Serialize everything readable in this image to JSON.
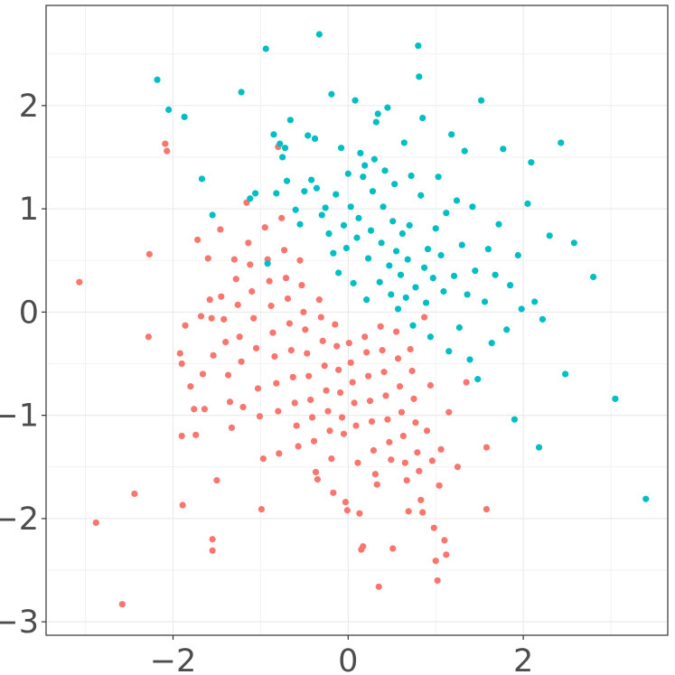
{
  "chart_data": {
    "type": "scatter",
    "title": "",
    "xlabel": "",
    "ylabel": "",
    "xlim": [
      -3.45,
      3.65
    ],
    "ylim": [
      -3.13,
      2.97
    ],
    "grid": true,
    "legend": "none",
    "x_ticks": [
      -2,
      0,
      2
    ],
    "x_tick_labels": [
      "−2",
      "0",
      "2"
    ],
    "y_ticks": [
      -3,
      -2,
      -1,
      0,
      1,
      2
    ],
    "y_tick_labels": [
      "−3",
      "−2",
      "−1",
      "0",
      "1",
      "2"
    ],
    "series": [
      {
        "color": "#F8766D",
        "points": [
          [
            -3.07,
            0.29
          ],
          [
            -2.88,
            -2.04
          ],
          [
            -2.58,
            -2.83
          ],
          [
            -2.44,
            -1.76
          ],
          [
            -2.27,
            0.56
          ],
          [
            -2.28,
            -0.24
          ],
          [
            -2.09,
            1.63
          ],
          [
            -2.07,
            1.56
          ],
          [
            -1.92,
            -0.4
          ],
          [
            -1.9,
            -0.5
          ],
          [
            -1.9,
            -1.2
          ],
          [
            -1.89,
            -1.87
          ],
          [
            -1.86,
            -0.13
          ],
          [
            -1.8,
            -0.72
          ],
          [
            -1.76,
            -0.94
          ],
          [
            -1.74,
            -1.19
          ],
          [
            -1.72,
            0.7
          ],
          [
            -1.68,
            -0.04
          ],
          [
            -1.66,
            -0.6
          ],
          [
            -1.64,
            -0.94
          ],
          [
            -1.6,
            0.52
          ],
          [
            -1.58,
            0.12
          ],
          [
            -1.56,
            -0.06
          ],
          [
            -1.54,
            -0.42
          ],
          [
            -1.55,
            -2.2
          ],
          [
            -1.55,
            -2.31
          ],
          [
            -1.5,
            -1.63
          ],
          [
            -1.46,
            0.8
          ],
          [
            -1.45,
            0.15
          ],
          [
            -1.42,
            -0.07
          ],
          [
            -1.4,
            -0.29
          ],
          [
            -1.37,
            -0.61
          ],
          [
            -1.35,
            -0.87
          ],
          [
            -1.33,
            -1.12
          ],
          [
            -1.3,
            0.51
          ],
          [
            -1.28,
            0.32
          ],
          [
            -1.26,
            0.07
          ],
          [
            -1.24,
            -0.24
          ],
          [
            -1.22,
            -0.48
          ],
          [
            -1.2,
            -0.92
          ],
          [
            -1.16,
            1.06
          ],
          [
            -1.14,
            0.67
          ],
          [
            -1.12,
            0.46
          ],
          [
            -1.1,
            0.2
          ],
          [
            -1.08,
            -0.06
          ],
          [
            -1.05,
            -0.35
          ],
          [
            -1.03,
            -0.74
          ],
          [
            -1.01,
            -1.01
          ],
          [
            -0.99,
            -1.91
          ],
          [
            -0.97,
            -1.42
          ],
          [
            -0.95,
            0.82
          ],
          [
            -0.92,
            0.51
          ],
          [
            -0.9,
            0.3
          ],
          [
            -0.88,
            0.06
          ],
          [
            -0.86,
            -0.2
          ],
          [
            -0.84,
            -0.43
          ],
          [
            -0.82,
            -0.69
          ],
          [
            -0.8,
            -0.96
          ],
          [
            -0.79,
            -1.37
          ],
          [
            -0.8,
            1.6
          ],
          [
            -0.76,
            0.91
          ],
          [
            -0.73,
            0.6
          ],
          [
            -0.71,
            0.33
          ],
          [
            -0.69,
            0.13
          ],
          [
            -0.67,
            -0.11
          ],
          [
            -0.65,
            -0.37
          ],
          [
            -0.63,
            -0.63
          ],
          [
            -0.61,
            -0.88
          ],
          [
            -0.59,
            -1.1
          ],
          [
            -0.57,
            -1.3
          ],
          [
            -0.55,
            0.5
          ],
          [
            -0.53,
            0.26
          ],
          [
            -0.51,
            0.0
          ],
          [
            -0.49,
            -0.17
          ],
          [
            -0.47,
            -0.4
          ],
          [
            -0.45,
            -0.62
          ],
          [
            -0.43,
            -0.85
          ],
          [
            -0.41,
            -1.02
          ],
          [
            -0.39,
            -1.25
          ],
          [
            -0.37,
            -1.55
          ],
          [
            -0.35,
            -1.62
          ],
          [
            -0.33,
            0.12
          ],
          [
            -0.31,
            -0.05
          ],
          [
            -0.29,
            -0.28
          ],
          [
            -0.27,
            -0.52
          ],
          [
            -0.25,
            -0.76
          ],
          [
            -0.23,
            -0.96
          ],
          [
            -0.21,
            -1.15
          ],
          [
            -0.19,
            -1.42
          ],
          [
            -0.17,
            -1.75
          ],
          [
            -0.15,
            -0.12
          ],
          [
            -0.13,
            -0.33
          ],
          [
            -0.11,
            -0.56
          ],
          [
            -0.09,
            -0.78
          ],
          [
            -0.07,
            -1.02
          ],
          [
            -0.05,
            -1.18
          ],
          [
            -0.03,
            -1.84
          ],
          [
            -0.01,
            -1.92
          ],
          [
            0.01,
            -0.3
          ],
          [
            0.03,
            -0.49
          ],
          [
            0.05,
            -0.68
          ],
          [
            0.07,
            -0.88
          ],
          [
            0.09,
            -1.1
          ],
          [
            0.11,
            -1.46
          ],
          [
            0.13,
            -1.95
          ],
          [
            0.15,
            -2.3
          ],
          [
            0.17,
            -2.27
          ],
          [
            0.19,
            -0.24
          ],
          [
            0.21,
            -0.39
          ],
          [
            0.23,
            -0.62
          ],
          [
            0.25,
            -0.86
          ],
          [
            0.27,
            -1.06
          ],
          [
            0.29,
            -1.34
          ],
          [
            0.31,
            -1.57
          ],
          [
            0.33,
            -1.67
          ],
          [
            0.35,
            -2.66
          ],
          [
            0.37,
            -0.14
          ],
          [
            0.39,
            -0.37
          ],
          [
            0.41,
            -0.58
          ],
          [
            0.43,
            -0.81
          ],
          [
            0.45,
            -1.04
          ],
          [
            0.47,
            -1.26
          ],
          [
            0.49,
            -1.43
          ],
          [
            0.51,
            -2.29
          ],
          [
            0.55,
            -0.19
          ],
          [
            0.57,
            -0.45
          ],
          [
            0.59,
            -0.72
          ],
          [
            0.61,
            -0.97
          ],
          [
            0.63,
            -1.2
          ],
          [
            0.65,
            -1.46
          ],
          [
            0.67,
            -1.63
          ],
          [
            0.69,
            -1.93
          ],
          [
            0.71,
            -0.36
          ],
          [
            0.73,
            -0.57
          ],
          [
            0.75,
            -0.84
          ],
          [
            0.77,
            -1.07
          ],
          [
            0.79,
            -1.36
          ],
          [
            0.81,
            -1.54
          ],
          [
            0.83,
            -1.82
          ],
          [
            0.85,
            -1.94
          ],
          [
            0.87,
            -0.05
          ],
          [
            0.9,
            -1.15
          ],
          [
            0.94,
            -0.71
          ],
          [
            0.96,
            -1.44
          ],
          [
            0.98,
            -2.09
          ],
          [
            1.0,
            -2.41
          ],
          [
            1.02,
            -2.6
          ],
          [
            1.04,
            -1.68
          ],
          [
            1.06,
            -1.33
          ],
          [
            1.1,
            -2.21
          ],
          [
            1.12,
            -2.35
          ],
          [
            1.15,
            -0.97
          ],
          [
            1.25,
            -1.5
          ],
          [
            1.35,
            -0.68
          ],
          [
            1.58,
            -1.31
          ],
          [
            1.58,
            -1.91
          ]
        ]
      },
      {
        "color": "#00BFC4",
        "points": [
          [
            -2.18,
            2.25
          ],
          [
            -2.05,
            1.96
          ],
          [
            -1.87,
            1.89
          ],
          [
            -1.67,
            1.29
          ],
          [
            -1.55,
            0.94
          ],
          [
            -1.22,
            2.13
          ],
          [
            -1.12,
            1.1
          ],
          [
            -1.06,
            1.15
          ],
          [
            -0.94,
            2.55
          ],
          [
            -0.92,
            0.47
          ],
          [
            -0.85,
            1.72
          ],
          [
            -0.82,
            1.15
          ],
          [
            -0.78,
            1.63
          ],
          [
            -0.75,
            1.5
          ],
          [
            -0.72,
            1.59
          ],
          [
            -0.7,
            1.27
          ],
          [
            -0.66,
            1.86
          ],
          [
            -0.6,
            0.99
          ],
          [
            -0.55,
            0.85
          ],
          [
            -0.5,
            1.17
          ],
          [
            -0.46,
            1.71
          ],
          [
            -0.42,
            1.28
          ],
          [
            -0.38,
            1.68
          ],
          [
            -0.36,
            1.2
          ],
          [
            -0.33,
            2.69
          ],
          [
            -0.3,
            0.94
          ],
          [
            -0.26,
            1.01
          ],
          [
            -0.22,
            0.76
          ],
          [
            -0.19,
            2.11
          ],
          [
            -0.17,
            0.57
          ],
          [
            -0.14,
            1.14
          ],
          [
            -0.11,
            0.38
          ],
          [
            -0.08,
            1.59
          ],
          [
            -0.05,
            0.84
          ],
          [
            -0.02,
            0.62
          ],
          [
            0.0,
            1.34
          ],
          [
            0.03,
            1.02
          ],
          [
            0.06,
            0.28
          ],
          [
            0.08,
            2.05
          ],
          [
            0.1,
            0.72
          ],
          [
            0.12,
            0.91
          ],
          [
            0.14,
            1.54
          ],
          [
            0.17,
            1.31
          ],
          [
            0.19,
            1.42
          ],
          [
            0.21,
            0.12
          ],
          [
            0.23,
            0.52
          ],
          [
            0.26,
            0.79
          ],
          [
            0.28,
            1.17
          ],
          [
            0.3,
            1.48
          ],
          [
            0.32,
            1.84
          ],
          [
            0.34,
            1.92
          ],
          [
            0.36,
            0.29
          ],
          [
            0.38,
            0.67
          ],
          [
            0.4,
            1.02
          ],
          [
            0.42,
            1.37
          ],
          [
            0.45,
            1.98
          ],
          [
            0.47,
            0.45
          ],
          [
            0.49,
            0.17
          ],
          [
            0.51,
            0.88
          ],
          [
            0.53,
            1.24
          ],
          [
            0.55,
            0.59
          ],
          [
            0.57,
            0.03
          ],
          [
            0.6,
            0.36
          ],
          [
            0.62,
            0.76
          ],
          [
            0.64,
            1.64
          ],
          [
            0.66,
            0.14
          ],
          [
            0.68,
            0.51
          ],
          [
            0.7,
            0.84
          ],
          [
            0.72,
            1.32
          ],
          [
            0.74,
            -0.13
          ],
          [
            0.77,
            0.24
          ],
          [
            0.8,
            2.58
          ],
          [
            0.81,
            2.28
          ],
          [
            0.83,
            1.13
          ],
          [
            0.85,
            1.88
          ],
          [
            0.87,
            0.43
          ],
          [
            0.89,
            0.09
          ],
          [
            0.91,
            0.61
          ],
          [
            0.94,
            -0.24
          ],
          [
            0.97,
            0.33
          ],
          [
            1.0,
            0.81
          ],
          [
            1.03,
            1.31
          ],
          [
            1.06,
            0.55
          ],
          [
            1.09,
            0.2
          ],
          [
            1.12,
            0.96
          ],
          [
            1.15,
            -0.38
          ],
          [
            1.18,
            1.72
          ],
          [
            1.21,
            0.35
          ],
          [
            1.24,
            1.08
          ],
          [
            1.27,
            -0.15
          ],
          [
            1.3,
            0.65
          ],
          [
            1.33,
            1.56
          ],
          [
            1.36,
            0.17
          ],
          [
            1.39,
            -0.46
          ],
          [
            1.42,
            1.02
          ],
          [
            1.45,
            0.4
          ],
          [
            1.48,
            -0.65
          ],
          [
            1.52,
            2.05
          ],
          [
            1.56,
            0.1
          ],
          [
            1.6,
            0.61
          ],
          [
            1.64,
            -0.3
          ],
          [
            1.68,
            0.36
          ],
          [
            1.72,
            0.85
          ],
          [
            1.77,
            1.58
          ],
          [
            1.81,
            -0.17
          ],
          [
            1.85,
            0.26
          ],
          [
            1.9,
            -1.04
          ],
          [
            1.94,
            0.55
          ],
          [
            1.98,
            0.03
          ],
          [
            2.05,
            1.05
          ],
          [
            2.09,
            1.45
          ],
          [
            2.13,
            0.1
          ],
          [
            2.18,
            -1.31
          ],
          [
            2.22,
            -0.07
          ],
          [
            2.3,
            0.74
          ],
          [
            2.43,
            1.64
          ],
          [
            2.48,
            -0.6
          ],
          [
            2.58,
            0.67
          ],
          [
            2.8,
            0.34
          ],
          [
            3.05,
            -0.84
          ],
          [
            3.4,
            -1.81
          ]
        ]
      }
    ]
  }
}
